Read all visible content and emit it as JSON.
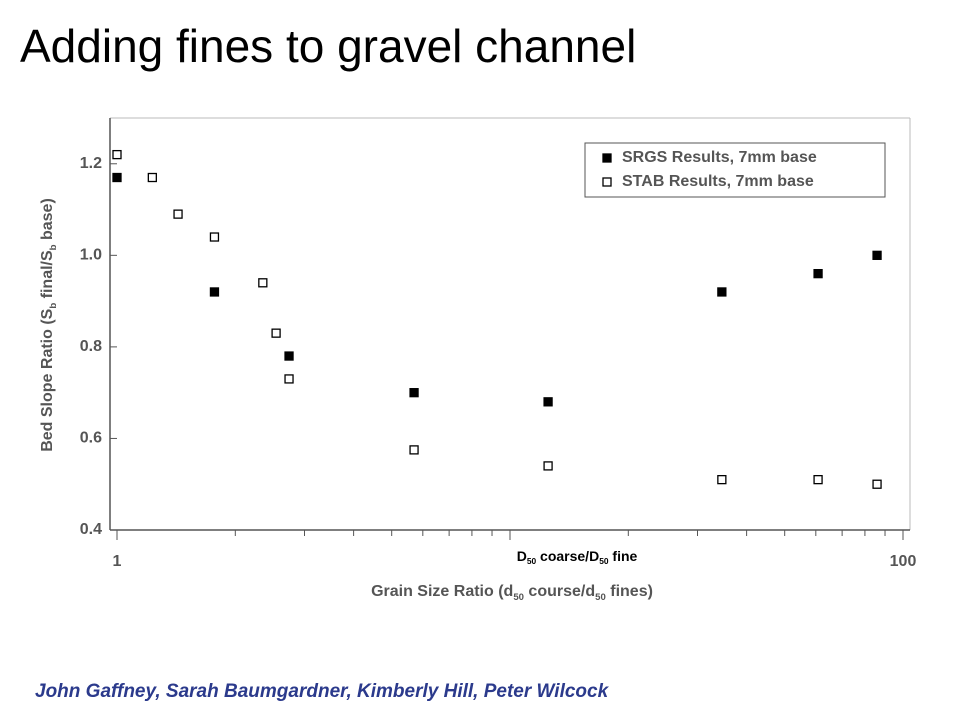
{
  "title": "Adding fines to gravel channel",
  "footer": "John Gaffney, Sarah Baumgardner, Kimberly Hill, Peter Wilcock",
  "chart_data": {
    "type": "scatter",
    "x_label": [
      "Grain Size Ratio (d",
      "50",
      " course/d",
      "50",
      " fines)"
    ],
    "y_label": [
      "Bed Slope Ratio (S",
      "b",
      " final/S",
      "b",
      " base)"
    ],
    "annotation": [
      "D",
      "50",
      " coarse/D",
      "50",
      " fine"
    ],
    "xlog": true,
    "xlim": [
      1,
      100
    ],
    "xticks": [
      1,
      100
    ],
    "ylim": [
      0.4,
      1.3
    ],
    "yticks": [
      0.4,
      0.6,
      0.8,
      {
        "value": 1,
        "label": "1.0"
      },
      1.2
    ],
    "legend": "upper right",
    "series": [
      {
        "name": "SRGS Results, 7mm base",
        "color": "#000000",
        "marker": "filled",
        "x": [
          1,
          1.77,
          2.74,
          5.7,
          12.5,
          34.6,
          60.8,
          85.9
        ],
        "values": [
          1.17,
          0.92,
          0.78,
          0.7,
          0.68,
          0.92,
          0.96,
          1.0
        ]
      },
      {
        "name": "STAB Results, 7mm base",
        "color": "#000000",
        "marker": "open",
        "x": [
          1,
          1.23,
          1.43,
          1.77,
          2.35,
          2.54,
          2.74,
          5.7,
          12.5,
          34.6,
          60.8,
          85.9
        ],
        "values": [
          1.22,
          1.17,
          1.09,
          1.04,
          0.94,
          0.83,
          0.73,
          0.575,
          0.54,
          0.51,
          0.51,
          0.5
        ]
      }
    ]
  }
}
